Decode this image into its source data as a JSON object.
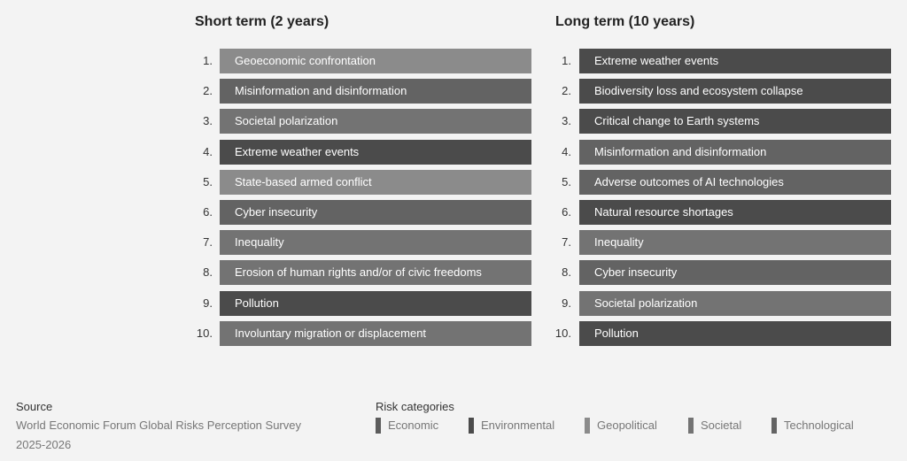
{
  "columns": [
    {
      "title": "Short term (2 years)",
      "items": [
        {
          "rank": "1.",
          "label": "Geoeconomic confrontation",
          "category": "Geopolitical"
        },
        {
          "rank": "2.",
          "label": "Misinformation and disinformation",
          "category": "Technological"
        },
        {
          "rank": "3.",
          "label": "Societal polarization",
          "category": "Societal"
        },
        {
          "rank": "4.",
          "label": "Extreme weather events",
          "category": "Environmental"
        },
        {
          "rank": "5.",
          "label": "State-based armed conflict",
          "category": "Geopolitical"
        },
        {
          "rank": "6.",
          "label": "Cyber insecurity",
          "category": "Technological"
        },
        {
          "rank": "7.",
          "label": "Inequality",
          "category": "Societal"
        },
        {
          "rank": "8.",
          "label": "Erosion of human rights and/or of civic freedoms",
          "category": "Societal"
        },
        {
          "rank": "9.",
          "label": "Pollution",
          "category": "Environmental"
        },
        {
          "rank": "10.",
          "label": "Involuntary migration or displacement",
          "category": "Societal"
        }
      ]
    },
    {
      "title": "Long term (10 years)",
      "items": [
        {
          "rank": "1.",
          "label": "Extreme weather events",
          "category": "Environmental"
        },
        {
          "rank": "2.",
          "label": "Biodiversity loss and ecosystem collapse",
          "category": "Environmental"
        },
        {
          "rank": "3.",
          "label": "Critical change to Earth systems",
          "category": "Environmental"
        },
        {
          "rank": "4.",
          "label": "Misinformation and disinformation",
          "category": "Technological"
        },
        {
          "rank": "5.",
          "label": "Adverse outcomes of AI technologies",
          "category": "Technological"
        },
        {
          "rank": "6.",
          "label": "Natural resource shortages",
          "category": "Environmental"
        },
        {
          "rank": "7.",
          "label": "Inequality",
          "category": "Societal"
        },
        {
          "rank": "8.",
          "label": "Cyber insecurity",
          "category": "Technological"
        },
        {
          "rank": "9.",
          "label": "Societal polarization",
          "category": "Societal"
        },
        {
          "rank": "10.",
          "label": "Pollution",
          "category": "Environmental"
        }
      ]
    }
  ],
  "source": {
    "heading": "Source",
    "lines": [
      "World Economic Forum Global Risks Perception Survey",
      "2025-2026"
    ]
  },
  "legend": {
    "heading": "Risk categories",
    "items": [
      {
        "name": "Economic",
        "color": "#5c5c5c"
      },
      {
        "name": "Environmental",
        "color": "#4b4b4b"
      },
      {
        "name": "Geopolitical",
        "color": "#8b8b8b"
      },
      {
        "name": "Societal",
        "color": "#737373"
      },
      {
        "name": "Technological",
        "color": "#636363"
      }
    ]
  }
}
